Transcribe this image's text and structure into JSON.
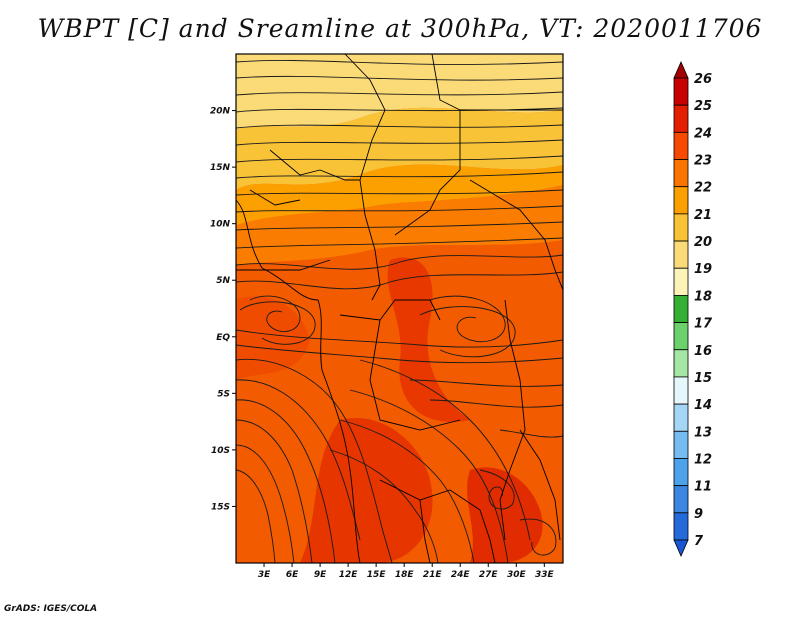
{
  "title": "WBPT [C] and Sreamline at 300hPa, VT: 2020011706",
  "credit": "GrADS: IGES/COLA",
  "chart_data": {
    "type": "heatmap",
    "variable": "Wet-bulb potential temperature (C) with streamlines",
    "level": "300hPa",
    "valid_time": "2020011706",
    "xlim": [
      0,
      35
    ],
    "ylim": [
      -20,
      25
    ],
    "x_ticks": [
      3,
      6,
      9,
      12,
      15,
      18,
      21,
      24,
      27,
      30,
      33
    ],
    "x_tick_labels": [
      "3E",
      "6E",
      "9E",
      "12E",
      "15E",
      "18E",
      "21E",
      "24E",
      "27E",
      "30E",
      "33E"
    ],
    "y_ticks": [
      20,
      15,
      10,
      5,
      0,
      -5,
      -10,
      -15
    ],
    "y_tick_labels": [
      "20N",
      "15N",
      "10N",
      "5N",
      "EQ",
      "5S",
      "10S",
      "15S"
    ],
    "colorbar": {
      "labels": [
        "26",
        "25",
        "24",
        "23",
        "22",
        "21",
        "20",
        "19",
        "18",
        "17",
        "16",
        "15",
        "14",
        "13",
        "12",
        "11",
        "9",
        "7"
      ],
      "colors": [
        "#a50000",
        "#c80000",
        "#e41e00",
        "#f54a00",
        "#fa7400",
        "#fc9f00",
        "#f9c338",
        "#fbdb78",
        "#fdf3b8",
        "#34b034",
        "#6cd06c",
        "#a4e6a4",
        "#e6f7fb",
        "#a6d6f6",
        "#76bcf0",
        "#4ea2ea",
        "#3a86e0",
        "#246adb",
        "#1a55d6"
      ]
    },
    "approx_field": [
      {
        "lat": 23,
        "wbpt": 20
      },
      {
        "lat": 18,
        "wbpt": 21
      },
      {
        "lat": 13,
        "wbpt": 22
      },
      {
        "lat": 8,
        "wbpt": 23
      },
      {
        "lat": 0,
        "wbpt": 23
      },
      {
        "lat": -10,
        "wbpt": 23
      },
      {
        "lat": -20,
        "wbpt": 24
      }
    ]
  }
}
